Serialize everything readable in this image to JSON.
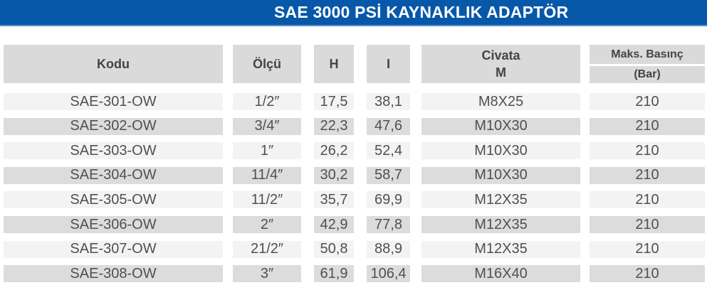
{
  "title": "SAE 3000 PSİ KAYNAKLIK ADAPTÖR",
  "colors": {
    "banner": "#0758a8",
    "header_bg": "#dadada",
    "row_light": "#f3f3f3",
    "row_dark": "#dcdcdc"
  },
  "headers": {
    "kodu": "Kodu",
    "olcu": "Ölçü",
    "h": "H",
    "i": "I",
    "civata_1": "Civata",
    "civata_2": "M",
    "maks_1": "Maks. Basınç",
    "maks_2": "(Bar)"
  },
  "rows": [
    [
      "SAE-301-OW",
      "1/2″",
      "17,5",
      "38,1",
      "M8X25",
      "210"
    ],
    [
      "SAE-302-OW",
      "3/4″",
      "22,3",
      "47,6",
      "M10X30",
      "210"
    ],
    [
      "SAE-303-OW",
      "1″",
      "26,2",
      "52,4",
      "M10X30",
      "210"
    ],
    [
      "SAE-304-OW",
      "11/4″",
      "30,2",
      "58,7",
      "M10X30",
      "210"
    ],
    [
      "SAE-305-OW",
      "11/2″",
      "35,7",
      "69,9",
      "M12X35",
      "210"
    ],
    [
      "SAE-306-OW",
      "2″",
      "42,9",
      "77,8",
      "M12X35",
      "210"
    ],
    [
      "SAE-307-OW",
      "21/2″",
      "50,8",
      "88,9",
      "M12X35",
      "210"
    ],
    [
      "SAE-308-OW",
      "3″",
      "61,9",
      "106,4",
      "M16X40",
      "210"
    ]
  ]
}
